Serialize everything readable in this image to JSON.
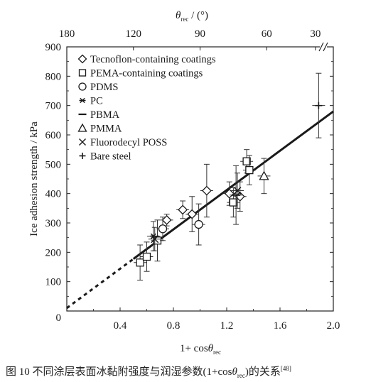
{
  "chart_data": {
    "type": "scatter",
    "top_axis": {
      "label_prefix": "θ",
      "label_sub": "rec",
      "label_suffix": " / (°)",
      "tick_labels": [
        "180",
        "120",
        "90",
        "60",
        "30"
      ],
      "tick_angles_deg": [
        180,
        120,
        90,
        60,
        30
      ]
    },
    "bottom_axis": {
      "label_prefix": "1+ cos",
      "label_theta": "θ",
      "label_sub": "rec",
      "tick_labels": [
        "0.4",
        "0.8",
        "1.2",
        "1.6",
        "2.0"
      ],
      "tick_values": [
        0.4,
        0.8,
        1.2,
        1.6,
        2.0
      ],
      "xlim": [
        0.0,
        2.0
      ]
    },
    "y_axis": {
      "label": "Ice adhesion strength / kPa",
      "tick_labels": [
        "0",
        "100",
        "200",
        "300",
        "400",
        "500",
        "600",
        "700",
        "800",
        "900"
      ],
      "tick_values": [
        0,
        100,
        200,
        300,
        400,
        500,
        600,
        700,
        800,
        900
      ],
      "ylim": [
        0,
        900
      ],
      "axis_break_near": 900
    },
    "legend": {
      "placement": "top-left",
      "entries": [
        {
          "marker": "diamond",
          "label": "Tecnoflon-containing coatings"
        },
        {
          "marker": "square",
          "label": "PEMA-containing coatings"
        },
        {
          "marker": "circle",
          "label": "PDMS"
        },
        {
          "marker": "asterisk",
          "label": "PC"
        },
        {
          "marker": "dash",
          "label": "PBMA"
        },
        {
          "marker": "triangle",
          "label": "PMMA"
        },
        {
          "marker": "cross",
          "label": "Fluorodecyl POSS"
        },
        {
          "marker": "plus",
          "label": "Bare steel"
        }
      ]
    },
    "fit_line": {
      "x_range": [
        0.0,
        2.0
      ],
      "y_range": [
        10,
        680
      ],
      "dashed_until_x": 0.5
    },
    "series": [
      {
        "marker": "diamond",
        "points": [
          {
            "x": 0.75,
            "y": 310,
            "err": 20
          },
          {
            "x": 0.87,
            "y": 345,
            "err": 30
          },
          {
            "x": 0.94,
            "y": 330,
            "err": 60
          },
          {
            "x": 1.05,
            "y": 410,
            "err": 90
          },
          {
            "x": 1.22,
            "y": 400,
            "err": 40
          },
          {
            "x": 1.3,
            "y": 390,
            "err": 50
          }
        ]
      },
      {
        "marker": "square",
        "points": [
          {
            "x": 0.55,
            "y": 165,
            "err": 60
          },
          {
            "x": 0.6,
            "y": 185,
            "err": 50
          },
          {
            "x": 0.68,
            "y": 240,
            "err": 70
          },
          {
            "x": 1.25,
            "y": 370,
            "err": 50
          },
          {
            "x": 1.35,
            "y": 510,
            "err": 40
          },
          {
            "x": 1.37,
            "y": 480,
            "err": 50
          }
        ]
      },
      {
        "marker": "circle",
        "points": [
          {
            "x": 0.72,
            "y": 280,
            "err": 40
          },
          {
            "x": 0.99,
            "y": 295,
            "err": 70
          }
        ]
      },
      {
        "marker": "asterisk",
        "points": [
          {
            "x": 0.65,
            "y": 255,
            "err": 50
          }
        ]
      },
      {
        "marker": "dash",
        "points": [
          {
            "x": 1.27,
            "y": 395,
            "err": 100
          }
        ]
      },
      {
        "marker": "triangle",
        "points": [
          {
            "x": 1.48,
            "y": 460,
            "err": 60
          }
        ]
      },
      {
        "marker": "cross",
        "points": [
          {
            "x": 0.66,
            "y": 245,
            "err": 40
          },
          {
            "x": 1.28,
            "y": 410,
            "err": 60
          }
        ]
      },
      {
        "marker": "plus",
        "points": [
          {
            "x": 1.89,
            "y": 700,
            "err": 110
          }
        ]
      }
    ]
  },
  "caption": {
    "prefix": "图 10   不同涂层表面冰黏附强度与润湿参数(1+cos",
    "theta": "θ",
    "sub": "rec",
    "suffix": ")的关系",
    "ref": "[48]"
  }
}
